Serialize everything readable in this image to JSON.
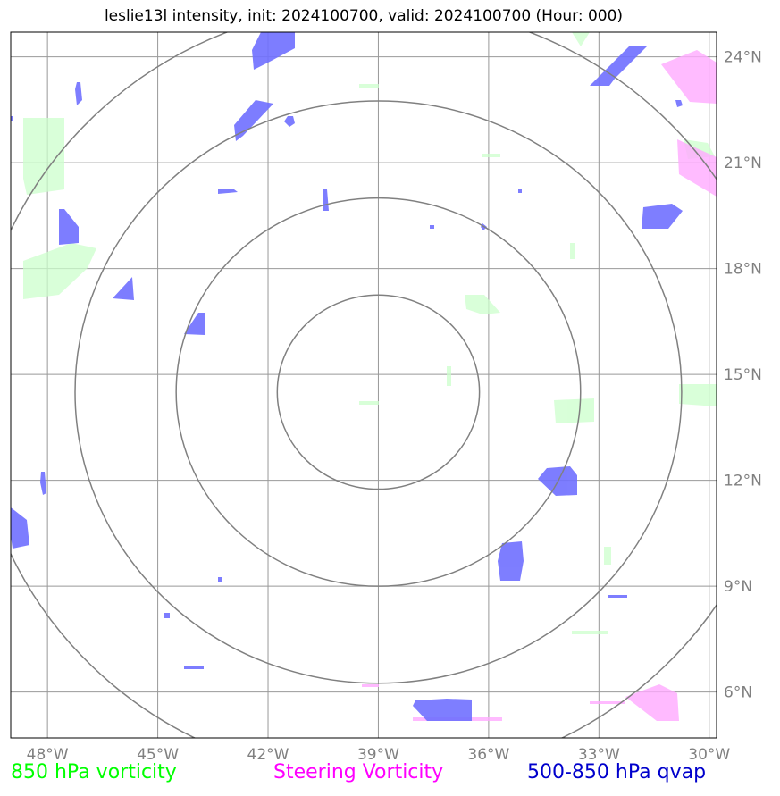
{
  "title": "leslie13l intensity, init: 2024100700, valid: 2024100700 (Hour: 000)",
  "map": {
    "lon_range": [
      -49,
      -29.8
    ],
    "lat_range": [
      4.7,
      24.7
    ],
    "lon_ticks": [
      -48,
      -45,
      -42,
      -39,
      -36,
      -33,
      -30
    ],
    "lon_tick_labels": [
      "48°W",
      "45°W",
      "42°W",
      "39°W",
      "36°W",
      "33°W",
      "30°W"
    ],
    "lat_ticks": [
      24,
      21,
      18,
      15,
      12,
      9,
      6
    ],
    "lat_tick_labels": [
      "24°N",
      "21°N",
      "18°N",
      "15°N",
      "12°N",
      "9°N",
      "6°N"
    ],
    "center": {
      "lon": -39.0,
      "lat": 14.5
    },
    "range_rings_deg": [
      2.75,
      5.5,
      8.25,
      11.0
    ],
    "colors": {
      "vorticity_850": "#ccffcc",
      "steering_vorticity": "#ffaaff",
      "qvap": "#7070ff",
      "grid": "#999999",
      "rings": "#808080"
    }
  },
  "legend": {
    "vort850": "850 hPa vorticity",
    "steering": "Steering Vorticity",
    "qvap": "500-850 hPa qvap"
  }
}
